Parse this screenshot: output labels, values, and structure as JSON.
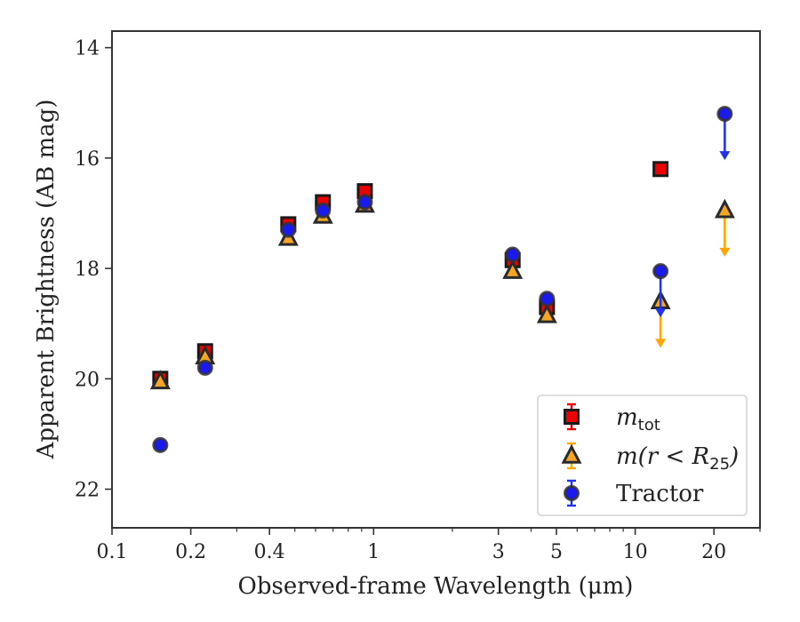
{
  "chart_data": {
    "type": "scatter",
    "xlabel": "Observed-frame Wavelength (μm)",
    "ylabel": "Apparent Brightness (AB mag)",
    "x_scale": "log",
    "y_inverted": true,
    "xlim": [
      0.1,
      30
    ],
    "ylim": [
      22.7,
      13.7
    ],
    "x_ticks": [
      {
        "value": 0.1,
        "label": "0.1"
      },
      {
        "value": 0.2,
        "label": "0.2"
      },
      {
        "value": 0.4,
        "label": "0.4"
      },
      {
        "value": 1,
        "label": "1"
      },
      {
        "value": 3,
        "label": "3"
      },
      {
        "value": 5,
        "label": "5"
      },
      {
        "value": 10,
        "label": "10"
      },
      {
        "value": 20,
        "label": "20"
      }
    ],
    "y_ticks": [
      {
        "value": 14,
        "label": "14"
      },
      {
        "value": 16,
        "label": "16"
      },
      {
        "value": 18,
        "label": "18"
      },
      {
        "value": 20,
        "label": "20"
      },
      {
        "value": 22,
        "label": "22"
      }
    ],
    "grid": false,
    "legend_position": "lower-right",
    "series": [
      {
        "name": "m_tot",
        "legend_main": "m",
        "legend_sub": "tot",
        "marker": "square",
        "color": "#ee0000",
        "errcolor": "#ee0000",
        "points": [
          {
            "x": 0.153,
            "y": 20.0
          },
          {
            "x": 0.227,
            "y": 19.5
          },
          {
            "x": 0.472,
            "y": 17.2
          },
          {
            "x": 0.64,
            "y": 16.8
          },
          {
            "x": 0.926,
            "y": 16.6
          },
          {
            "x": 3.4,
            "y": 17.85
          },
          {
            "x": 4.6,
            "y": 18.7
          },
          {
            "x": 12.5,
            "y": 16.2
          }
        ]
      },
      {
        "name": "m(r < R25)",
        "legend_main": "m(r < R",
        "legend_sub": "25",
        "legend_tail": ")",
        "marker": "triangle",
        "color": "#f5a623",
        "errcolor": "#ffa500",
        "points": [
          {
            "x": 0.153,
            "y": 20.05
          },
          {
            "x": 0.227,
            "y": 19.6
          },
          {
            "x": 0.472,
            "y": 17.45
          },
          {
            "x": 0.64,
            "y": 17.05
          },
          {
            "x": 0.926,
            "y": 16.85
          },
          {
            "x": 3.4,
            "y": 18.05
          },
          {
            "x": 4.6,
            "y": 18.85
          },
          {
            "x": 12.5,
            "y": 18.6,
            "upper_limit": true
          },
          {
            "x": 22.0,
            "y": 16.95,
            "upper_limit": true
          }
        ]
      },
      {
        "name": "Tractor",
        "legend_main": "Tractor",
        "marker": "circle",
        "color": "#1a1aee",
        "errcolor": "#2233ee",
        "points": [
          {
            "x": 0.153,
            "y": 21.2
          },
          {
            "x": 0.227,
            "y": 19.8
          },
          {
            "x": 0.472,
            "y": 17.3
          },
          {
            "x": 0.64,
            "y": 16.95
          },
          {
            "x": 0.926,
            "y": 16.8
          },
          {
            "x": 3.4,
            "y": 17.75
          },
          {
            "x": 4.6,
            "y": 18.55
          },
          {
            "x": 12.5,
            "y": 18.05,
            "upper_limit": true
          },
          {
            "x": 22.0,
            "y": 15.2,
            "upper_limit": true
          }
        ]
      }
    ]
  }
}
